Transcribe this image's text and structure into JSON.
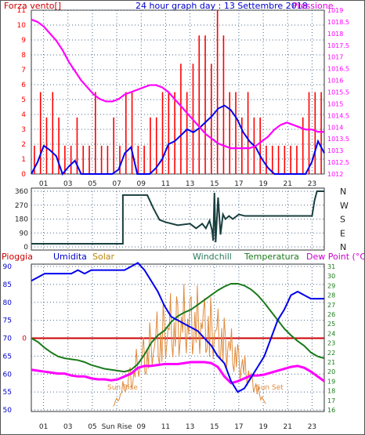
{
  "header": {
    "left_title": "Forza vento[]",
    "center_title": "24 hour graph day : 13 Settembre 2018",
    "right_title": "Pressione"
  },
  "panel3_header": {
    "pioggia": "Pioggia",
    "umidita": "Umidita",
    "solar": "Solar",
    "windchill": "Windchill",
    "temperatura": "Temperatura",
    "dewpoint": "Dew Point (°C)"
  },
  "annotations": {
    "sun_rise_left": "Sun Rise",
    "sun_rise_axis": "Sun Rise",
    "sun_set": "Sun Set"
  },
  "colors": {
    "wind": "#ff0000",
    "gust": "#0000ee",
    "pressure": "#ff00ff",
    "direction": "#1a3f3f",
    "humidity": "#0000ee",
    "solar": "#e08a3a",
    "temperature": "#1a7a1a",
    "dewpoint": "#ff00ff",
    "rain": "#cc0000",
    "grid": "#4a6a8a"
  },
  "chart_data": [
    {
      "type": "line",
      "name": "wind",
      "x_ticks": [
        "01",
        "03",
        "05",
        "07",
        "09",
        "11",
        "13",
        "15",
        "17",
        "19",
        "21",
        "23"
      ],
      "ylim": [
        0,
        11
      ],
      "y_ticks": [
        "0",
        "1",
        "2",
        "3",
        "4",
        "5",
        "6",
        "7",
        "8",
        "9",
        "10",
        "11"
      ],
      "y2lim": [
        1012,
        1019
      ],
      "y2_ticks": [
        "1012",
        "1012.5",
        "1013",
        "1013.5",
        "1014",
        "1014.5",
        "1015",
        "1015.5",
        "1016",
        "1016.5",
        "1017",
        "1017.5",
        "1018",
        "1018.5",
        "1019"
      ],
      "wind_avg": [
        0,
        0.8,
        1.9,
        1.6,
        1.2,
        0,
        0.5,
        0.9,
        0,
        0,
        0,
        0,
        0,
        0,
        0.3,
        1.4,
        1.8,
        0,
        0,
        0,
        0.4,
        1,
        2,
        2.2,
        2.6,
        3,
        2.8,
        3.1,
        3.5,
        3.9,
        4.4,
        4.6,
        4.3,
        3.7,
        2.8,
        2.2,
        1.8,
        1,
        0.4,
        0,
        0,
        0,
        0,
        0,
        0,
        0.8,
        2.2,
        1.4
      ],
      "wind_gust": [
        1.9,
        5.5,
        3.8,
        5.5,
        3.8,
        1.9,
        1.9,
        3.8,
        1.9,
        1.9,
        5.5,
        1.9,
        1.9,
        3.8,
        1.9,
        5.5,
        5.5,
        1.9,
        1.9,
        3.8,
        3.8,
        5.5,
        5.5,
        5.5,
        7.4,
        5.5,
        7.4,
        9.3,
        9.3,
        7.4,
        11,
        9.3,
        5.5,
        5.5,
        3.8,
        5.5,
        3.8,
        3.8,
        1.9,
        1.9,
        1.9,
        1.9,
        1.9,
        1.9,
        3.8,
        5.5,
        5.5,
        5.5
      ],
      "pressure": [
        1018.6,
        1018.5,
        1018.3,
        1018,
        1017.7,
        1017.3,
        1016.8,
        1016.4,
        1016,
        1015.7,
        1015.4,
        1015.2,
        1015.1,
        1015.1,
        1015.2,
        1015.4,
        1015.5,
        1015.6,
        1015.7,
        1015.8,
        1015.8,
        1015.7,
        1015.5,
        1015.2,
        1014.9,
        1014.6,
        1014.3,
        1014,
        1013.7,
        1013.5,
        1013.3,
        1013.2,
        1013.1,
        1013.1,
        1013.1,
        1013.1,
        1013.2,
        1013.4,
        1013.6,
        1013.9,
        1014.1,
        1014.2,
        1014.1,
        1014,
        1013.9,
        1013.9,
        1013.8,
        1013.8
      ],
      "x_range": [
        0,
        24
      ]
    },
    {
      "type": "line",
      "name": "wind_direction",
      "x_ticks": [
        "01",
        "03",
        "05",
        "07",
        "09",
        "11",
        "13",
        "15",
        "17",
        "19",
        "21",
        "23"
      ],
      "ylim": [
        0,
        360
      ],
      "y_ticks": [
        "0",
        "90",
        "180",
        "270",
        "360"
      ],
      "right_labels": [
        "N",
        "W",
        "S",
        "E",
        "N"
      ],
      "x": [
        0,
        7.5,
        7.5,
        9.5,
        10,
        10.5,
        11,
        12,
        13,
        13.5,
        14,
        14.3,
        14.6,
        14.8,
        14.9,
        15,
        15.1,
        15.3,
        15.5,
        15.7,
        15.9,
        16.2,
        16.5,
        17,
        17.5,
        18,
        19,
        20,
        21,
        22,
        23,
        23.2,
        23.4,
        24
      ],
      "direction": [
        20,
        20,
        335,
        335,
        250,
        175,
        160,
        140,
        150,
        120,
        150,
        120,
        170,
        110,
        40,
        350,
        30,
        320,
        80,
        210,
        180,
        200,
        180,
        210,
        200,
        200,
        200,
        200,
        200,
        200,
        200,
        300,
        360,
        360
      ]
    },
    {
      "type": "line",
      "name": "humidity_temperature_dewpoint_solar",
      "x_ticks": [
        "01",
        "03",
        "05",
        "Sun Rise",
        "09",
        "11",
        "13",
        "15",
        "17",
        "19",
        "21",
        "23"
      ],
      "ylim": [
        50,
        90
      ],
      "y_ticks": [
        "50",
        "55",
        "60",
        "65",
        "70",
        "75",
        "80",
        "85",
        "90"
      ],
      "y2lim": [
        16,
        31
      ],
      "y2_ticks": [
        "16",
        "17",
        "18",
        "19",
        "20",
        "21",
        "22",
        "23",
        "24",
        "25",
        "26",
        "27",
        "28",
        "29",
        "30",
        "31"
      ],
      "rain_label": "0",
      "humidity": [
        86,
        87,
        88,
        88,
        88,
        88,
        88,
        89,
        88,
        89,
        89,
        89,
        89,
        89,
        89,
        90,
        91,
        89,
        86,
        83,
        79,
        76,
        75,
        74,
        73,
        72,
        70,
        68,
        65,
        63,
        58,
        55,
        56,
        59,
        62,
        65,
        70,
        75,
        78,
        82,
        83,
        82,
        81,
        81,
        81
      ],
      "temperature": [
        23.5,
        23.1,
        22.5,
        22,
        21.6,
        21.4,
        21.3,
        21.2,
        21,
        20.7,
        20.5,
        20.3,
        20.2,
        20.1,
        20,
        20.2,
        20.8,
        21.8,
        23,
        23.8,
        24.3,
        25.2,
        25.8,
        26.2,
        26.5,
        27,
        27.5,
        28,
        28.5,
        28.9,
        29.2,
        29.2,
        29,
        28.6,
        28,
        27.2,
        26.3,
        25.4,
        24.5,
        23.8,
        23.2,
        22.7,
        22,
        21.6,
        21.4
      ],
      "dewpoint": [
        20.2,
        20.1,
        20,
        19.9,
        19.8,
        19.8,
        19.6,
        19.5,
        19.5,
        19.3,
        19.2,
        19.2,
        19.1,
        19.2,
        19.5,
        19.8,
        20.4,
        20.6,
        20.6,
        20.7,
        20.8,
        20.8,
        20.8,
        20.9,
        21,
        21,
        21,
        20.9,
        20.5,
        19.5,
        18.8,
        19,
        19.3,
        19.6,
        19.6,
        19.7,
        19.9,
        20.1,
        20.3,
        20.5,
        20.6,
        20.4,
        20,
        19.5,
        19
      ]
    }
  ]
}
